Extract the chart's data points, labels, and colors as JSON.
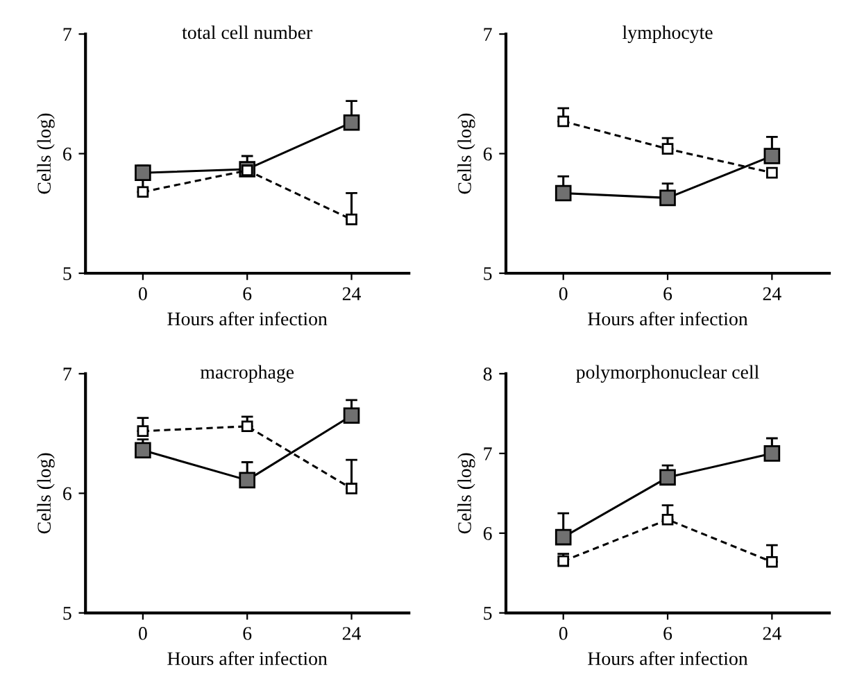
{
  "chart_data": [
    {
      "type": "line",
      "title": "total cell number",
      "xlabel": "Hours after infection",
      "ylabel": "Cells (log)",
      "categories": [
        "0",
        "6",
        "24"
      ],
      "ylim": [
        5,
        7
      ],
      "yticks": [
        5,
        6,
        7
      ],
      "marker": "square",
      "grid": false,
      "legend": false,
      "series": [
        {
          "color": "#707070",
          "line_style": "solid",
          "values": [
            5.84,
            5.87,
            6.26
          ],
          "errors": [
            [
              5.84,
              5.9
            ],
            [
              5.87,
              5.98
            ],
            [
              6.26,
              6.44
            ]
          ]
        },
        {
          "color": "#ffffff",
          "line_style": "dashed",
          "values": [
            5.68,
            5.86,
            5.45
          ],
          "errors": [
            [
              5.68,
              5.78
            ],
            null,
            [
              5.45,
              5.67
            ]
          ]
        }
      ]
    },
    {
      "type": "line",
      "title": "lymphocyte",
      "xlabel": "Hours after infection",
      "ylabel": "Cells (log)",
      "categories": [
        "0",
        "6",
        "24"
      ],
      "ylim": [
        5,
        7
      ],
      "yticks": [
        5,
        6,
        7
      ],
      "marker": "square",
      "grid": false,
      "legend": false,
      "series": [
        {
          "color": "#707070",
          "line_style": "solid",
          "values": [
            5.67,
            5.63,
            5.98
          ],
          "errors": [
            [
              5.67,
              5.81
            ],
            [
              5.63,
              5.75
            ],
            [
              5.98,
              6.14
            ]
          ]
        },
        {
          "color": "#ffffff",
          "line_style": "dashed",
          "values": [
            6.27,
            6.04,
            5.84
          ],
          "errors": [
            [
              6.27,
              6.38
            ],
            [
              6.04,
              6.13
            ],
            null
          ]
        }
      ]
    },
    {
      "type": "line",
      "title": "macrophage",
      "xlabel": "Hours after infection",
      "ylabel": "Cells (log)",
      "categories": [
        "0",
        "6",
        "24"
      ],
      "ylim": [
        5,
        7
      ],
      "yticks": [
        5,
        6,
        7
      ],
      "marker": "square",
      "grid": false,
      "legend": false,
      "series": [
        {
          "color": "#707070",
          "line_style": "solid",
          "values": [
            6.36,
            6.11,
            6.65
          ],
          "errors": [
            [
              6.36,
              6.45
            ],
            [
              6.11,
              6.26
            ],
            [
              6.65,
              6.78
            ]
          ]
        },
        {
          "color": "#ffffff",
          "line_style": "dashed",
          "values": [
            6.52,
            6.56,
            6.04
          ],
          "errors": [
            [
              6.52,
              6.63
            ],
            [
              6.56,
              6.64
            ],
            [
              6.04,
              6.28
            ]
          ]
        }
      ]
    },
    {
      "type": "line",
      "title": "polymorphonuclear cell",
      "xlabel": "Hours after infection",
      "ylabel": "Cells (log)",
      "categories": [
        "0",
        "6",
        "24"
      ],
      "ylim": [
        5,
        8
      ],
      "yticks": [
        5,
        6,
        7,
        8
      ],
      "marker": "square",
      "grid": false,
      "legend": false,
      "series": [
        {
          "color": "#707070",
          "line_style": "solid",
          "values": [
            5.95,
            6.7,
            7.0
          ],
          "errors": [
            [
              5.95,
              6.25
            ],
            [
              6.7,
              6.85
            ],
            [
              7.0,
              7.19
            ]
          ]
        },
        {
          "color": "#ffffff",
          "line_style": "dashed",
          "values": [
            5.65,
            6.17,
            5.64
          ],
          "errors": [
            [
              5.65,
              5.74
            ],
            [
              6.17,
              6.35
            ],
            [
              5.64,
              5.85
            ]
          ]
        }
      ]
    }
  ]
}
